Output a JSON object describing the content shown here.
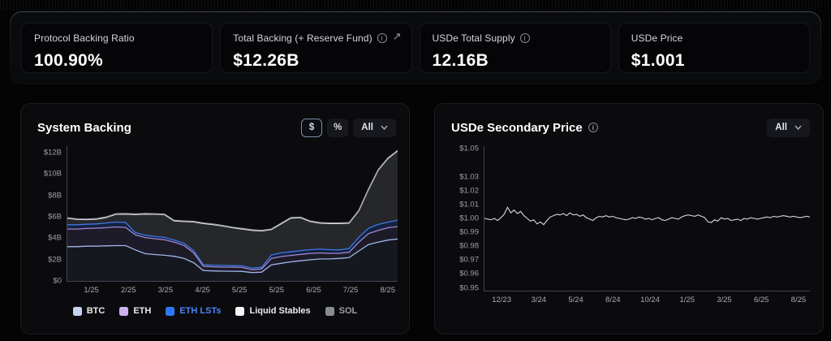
{
  "stats": [
    {
      "label": "Protocol Backing Ratio",
      "value": "100.90%",
      "info": false,
      "external": false
    },
    {
      "label": "Total Backing (+ Reserve Fund)",
      "value": "$12.26B",
      "info": true,
      "external": true,
      "external_arrow": "↗"
    },
    {
      "label": "USDe Total Supply",
      "value": "12.16B",
      "info": true,
      "external": false
    },
    {
      "label": "USDe Price",
      "value": "$1.001",
      "info": false,
      "external": false
    }
  ],
  "backing_panel": {
    "controls": {
      "dollar": "$",
      "percent": "%",
      "range": "All"
    },
    "selected_unit": "$"
  },
  "price_panel": {
    "controls": {
      "range": "All"
    }
  },
  "colors": {
    "panel_bg": "#0b0b0d",
    "page_bg": "#040405",
    "axis": "#42464e",
    "tick_text": "#9ba0a8",
    "selected_border": "#7e8aa5",
    "price_line": "#d5d9e0"
  },
  "chart_data": [
    {
      "id": "system_backing",
      "type": "area",
      "stacked": true,
      "title": "System Backing",
      "unit": "USD billions",
      "ylim": [
        0,
        12.6
      ],
      "y_ticks": [
        {
          "label": "$12B",
          "value": 12
        },
        {
          "label": "$10B",
          "value": 10
        },
        {
          "label": "$8B",
          "value": 8
        },
        {
          "label": "$6B",
          "value": 6
        },
        {
          "label": "$4B",
          "value": 4
        },
        {
          "label": "$2B",
          "value": 2
        },
        {
          "label": "$0",
          "value": 0
        }
      ],
      "x_tick_labels": [
        "1/25",
        "2/25",
        "3/25",
        "4/25",
        "5/25",
        "5/25",
        "6/25",
        "7/25",
        "8/25"
      ],
      "legend_position": "bottom",
      "grid": false,
      "series": [
        {
          "name": "BTC",
          "color": "#9db8e8",
          "fill": "rgba(125,150,205,0.10)",
          "swatch": "#c3d4f2",
          "label_color": "#e8eaed",
          "values": [
            3.2,
            3.2,
            3.25,
            3.25,
            3.28,
            3.3,
            3.3,
            2.9,
            2.55,
            2.47,
            2.4,
            2.3,
            2.1,
            1.7,
            0.97,
            0.93,
            0.91,
            0.9,
            0.89,
            0.78,
            0.82,
            1.5,
            1.65,
            1.78,
            1.88,
            1.97,
            2.05,
            2.06,
            2.1,
            2.18,
            2.8,
            3.4,
            3.62,
            3.82,
            3.92
          ]
        },
        {
          "name": "ETH",
          "color": "#9d8ad0",
          "fill": "rgba(150,125,215,0.14)",
          "swatch": "#c9b4ee",
          "label_color": "#e8eaed",
          "values": [
            1.65,
            1.65,
            1.65,
            1.68,
            1.7,
            1.75,
            1.7,
            1.4,
            1.5,
            1.48,
            1.45,
            1.32,
            1.22,
            0.92,
            0.4,
            0.39,
            0.38,
            0.38,
            0.37,
            0.27,
            0.3,
            0.6,
            0.63,
            0.6,
            0.6,
            0.6,
            0.57,
            0.52,
            0.48,
            0.5,
            0.82,
            1.02,
            1.1,
            1.15,
            1.16
          ]
        },
        {
          "name": "ETH LSTs",
          "color": "#3f78e8",
          "fill": "rgba(60,115,245,0.22)",
          "swatch": "#2e77f6",
          "label_color": "#4a86f7",
          "values": [
            0.4,
            0.4,
            0.4,
            0.4,
            0.44,
            0.45,
            0.46,
            0.22,
            0.22,
            0.22,
            0.22,
            0.2,
            0.2,
            0.2,
            0.15,
            0.15,
            0.15,
            0.15,
            0.15,
            0.15,
            0.16,
            0.32,
            0.34,
            0.34,
            0.34,
            0.35,
            0.35,
            0.34,
            0.32,
            0.34,
            0.46,
            0.5,
            0.56,
            0.51,
            0.6
          ]
        },
        {
          "name": "Liquid Stables",
          "color": "#e6e9ee",
          "fill": "rgba(225,230,240,0.13)",
          "swatch": "#f4f5f7",
          "label_color": "#e8eaed",
          "values": [
            0.6,
            0.5,
            0.43,
            0.44,
            0.51,
            0.73,
            0.79,
            1.69,
            1.98,
            2.06,
            2.12,
            1.79,
            2.03,
            2.69,
            3.85,
            3.8,
            3.69,
            3.54,
            3.44,
            3.53,
            3.39,
            2.38,
            2.71,
            3.15,
            3.09,
            2.63,
            2.43,
            2.45,
            2.47,
            2.38,
            2.47,
            3.63,
            5.07,
            5.97,
            6.47
          ]
        },
        {
          "name": "SOL",
          "color": "#a2a7af",
          "fill": "rgba(150,155,165,0.35)",
          "swatch": "#888d95",
          "label_color": "#9aa0a8",
          "values": [
            0.05,
            0.05,
            0.05,
            0.05,
            0.05,
            0.05,
            0.05,
            0.05,
            0.05,
            0.05,
            0.05,
            0.05,
            0.05,
            0.05,
            0.05,
            0.05,
            0.05,
            0.05,
            0.05,
            0.05,
            0.05,
            0.05,
            0.05,
            0.05,
            0.05,
            0.05,
            0.05,
            0.05,
            0.05,
            0.05,
            0.05,
            0.05,
            0.05,
            0.05,
            0.05
          ]
        }
      ]
    },
    {
      "id": "usde_secondary_price",
      "type": "line",
      "title": "USDe Secondary Price",
      "ylim": [
        0.95,
        1.05
      ],
      "y_ticks": [
        {
          "label": "$1.05",
          "value": 1.05
        },
        {
          "label": "$1.03",
          "value": 1.03
        },
        {
          "label": "$1.02",
          "value": 1.02
        },
        {
          "label": "$1.01",
          "value": 1.01
        },
        {
          "label": "$1.00",
          "value": 1.0
        },
        {
          "label": "$0.99",
          "value": 0.99
        },
        {
          "label": "$0.98",
          "value": 0.98
        },
        {
          "label": "$0.97",
          "value": 0.97
        },
        {
          "label": "$0.96",
          "value": 0.96
        },
        {
          "label": "$0.95",
          "value": 0.95
        }
      ],
      "x_tick_labels": [
        "12/23",
        "3/24",
        "5/24",
        "8/24",
        "10/24",
        "1/25",
        "3/25",
        "6/25",
        "8/25"
      ],
      "grid": false,
      "series": [
        {
          "name": "USDe Price",
          "color": "#d5d9e0",
          "values": [
            1.0,
            0.9995,
            0.999,
            1.0,
            0.9985,
            1.0005,
            1.003,
            1.008,
            1.004,
            1.006,
            1.0035,
            1.005,
            1.002,
            1.0,
            0.998,
            0.999,
            0.996,
            0.9975,
            0.9955,
            0.9985,
            1.001,
            1.002,
            1.003,
            1.0025,
            1.0035,
            1.002,
            1.004,
            1.0025,
            1.003,
            1.0015,
            1.0025,
            1.0005,
            0.9995,
            0.9985,
            1.0005,
            1.0015,
            1.001,
            1.002,
            1.001,
            1.0015,
            1.0005,
            1.0,
            0.9995,
            0.999,
            0.9995,
            1.0005,
            1.0,
            1.001,
            1.0005,
            0.9995,
            1.0,
            0.999,
            1.0,
            1.0005,
            0.999,
            0.9985,
            0.9995,
            1.0005,
            1.0,
            0.9995,
            1.001,
            1.002,
            1.0025,
            1.002,
            1.0015,
            1.0025,
            1.0015,
            1.0005,
            0.9975,
            0.997,
            0.999,
            0.998,
            1.0005,
            0.9995,
            1.0,
            0.9985,
            0.999,
            0.9995,
            0.9985,
            1.0,
            0.9995,
            1.0005,
            1.0,
            0.9995,
            1.0,
            1.0005,
            1.001,
            1.0005,
            1.0015,
            1.001,
            1.0015,
            1.002,
            1.0015,
            1.001,
            1.0015,
            1.001,
            1.0005,
            1.001,
            1.0015,
            1.001
          ]
        }
      ]
    }
  ]
}
